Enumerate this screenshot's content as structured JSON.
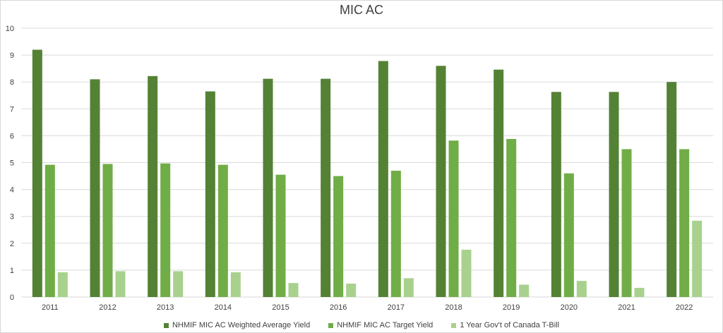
{
  "chart_data": {
    "type": "bar",
    "title": "MIC AC",
    "categories": [
      "2011",
      "2012",
      "2013",
      "2014",
      "2015",
      "2016",
      "2017",
      "2018",
      "2019",
      "2020",
      "2021",
      "2022"
    ],
    "series": [
      {
        "name": "NHMIF MIC AC Weighted Average Yield",
        "color": "#548235",
        "values": [
          9.2,
          8.1,
          8.22,
          7.65,
          8.12,
          8.12,
          8.78,
          8.6,
          8.46,
          7.63,
          7.63,
          8.0
        ]
      },
      {
        "name": "NHMIF MIC AC Target Yield",
        "color": "#70ad47",
        "values": [
          4.92,
          4.95,
          4.97,
          4.92,
          4.55,
          4.5,
          4.7,
          5.82,
          5.88,
          4.6,
          5.5,
          5.5
        ]
      },
      {
        "name": "1 Year Gov't of Canada T-Bill",
        "color": "#a9d18e",
        "values": [
          0.92,
          0.96,
          0.96,
          0.92,
          0.52,
          0.5,
          0.7,
          1.76,
          0.46,
          0.6,
          0.34,
          2.84
        ]
      }
    ],
    "ylim": [
      0,
      10
    ],
    "yticks": [
      0,
      1,
      2,
      3,
      4,
      5,
      6,
      7,
      8,
      9,
      10
    ],
    "grid": true,
    "legend": "bottom"
  }
}
